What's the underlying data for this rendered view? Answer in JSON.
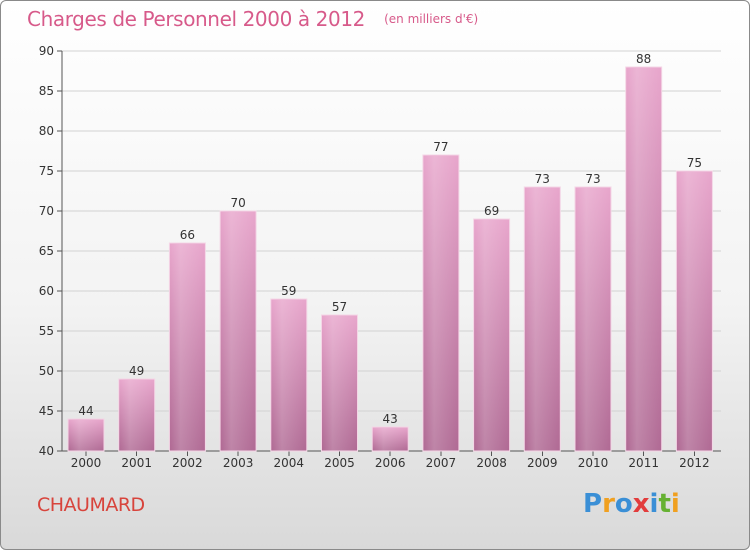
{
  "header": {
    "title": "Charges de Personnel 2000 à 2012",
    "subtitle": "(en milliers d'€)"
  },
  "footer": {
    "commune": "CHAUMARD",
    "logo_text": "Proxiti",
    "logo_letters": [
      {
        "ch": "P",
        "color": "#3a8fd6"
      },
      {
        "ch": "r",
        "color": "#f0a020"
      },
      {
        "ch": "o",
        "color": "#3a8fd6"
      },
      {
        "ch": "x",
        "color": "#e23c3c"
      },
      {
        "ch": "i",
        "color": "#3a8fd6"
      },
      {
        "ch": "t",
        "color": "#66b132"
      },
      {
        "ch": "i",
        "color": "#f0a020"
      }
    ]
  },
  "chart_data": {
    "type": "bar",
    "title": "Charges de Personnel 2000 à 2012",
    "subtitle": "(en milliers d'€)",
    "xlabel": "",
    "ylabel": "",
    "categories": [
      "2000",
      "2001",
      "2002",
      "2003",
      "2004",
      "2005",
      "2006",
      "2007",
      "2008",
      "2009",
      "2010",
      "2011",
      "2012"
    ],
    "values": [
      44,
      49,
      66,
      70,
      59,
      57,
      43,
      77,
      69,
      73,
      73,
      88,
      75
    ],
    "ylim": [
      40,
      90
    ],
    "yticks": [
      40,
      45,
      50,
      55,
      60,
      65,
      70,
      75,
      80,
      85,
      90
    ],
    "grid": true,
    "bar_color_top": "#e8a6cc",
    "bar_color_bottom": "#b06a94"
  }
}
